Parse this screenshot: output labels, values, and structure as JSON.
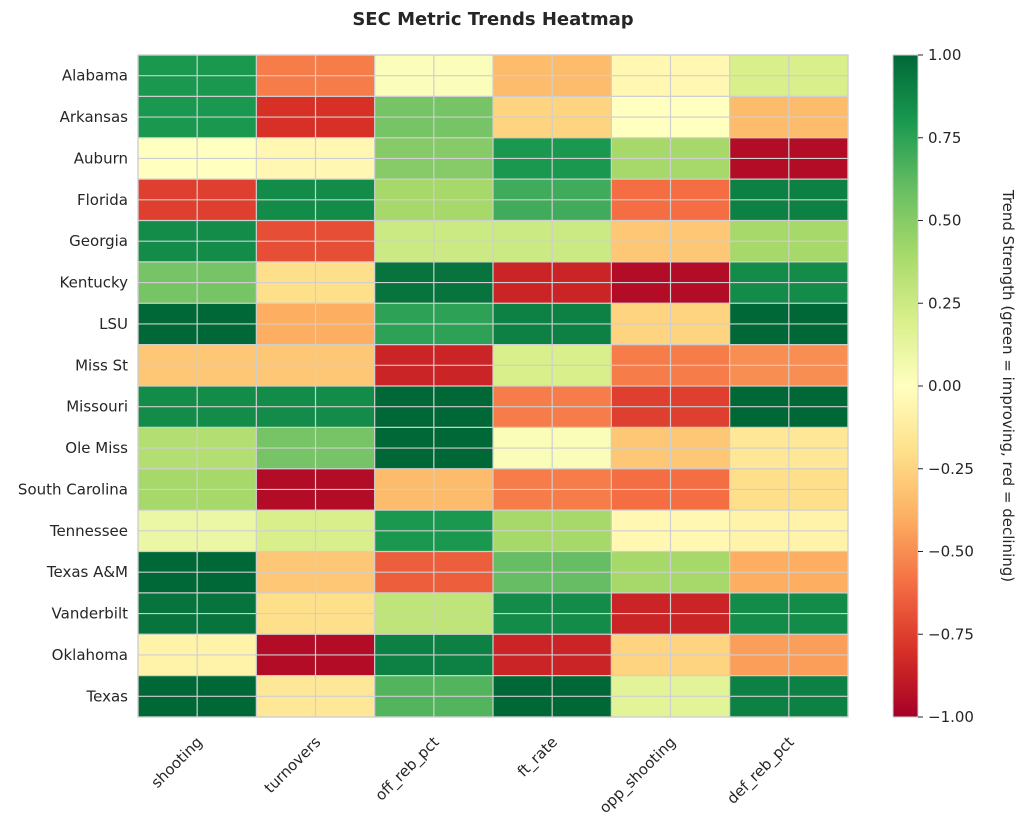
{
  "chart_data": {
    "type": "heatmap",
    "title": "SEC Metric Trends Heatmap",
    "rows": [
      "Alabama",
      "Arkansas",
      "Auburn",
      "Florida",
      "Georgia",
      "Kentucky",
      "LSU",
      "Miss St",
      "Missouri",
      "Ole Miss",
      "South Carolina",
      "Tennessee",
      "Texas A&M",
      "Vanderbilt",
      "Oklahoma",
      "Texas"
    ],
    "columns": [
      "shooting",
      "turnovers",
      "off_reb_pct",
      "ft_rate",
      "opp_shooting",
      "def_reb_pct"
    ],
    "values": [
      [
        0.8,
        -0.55,
        0.02,
        -0.35,
        -0.05,
        0.2
      ],
      [
        0.8,
        -0.8,
        0.55,
        -0.25,
        0.0,
        -0.35
      ],
      [
        0.0,
        -0.05,
        0.5,
        0.8,
        0.4,
        -0.95
      ],
      [
        -0.75,
        0.85,
        0.4,
        0.7,
        -0.6,
        0.9
      ],
      [
        0.85,
        -0.7,
        0.25,
        0.25,
        -0.3,
        0.4
      ],
      [
        0.55,
        -0.2,
        0.95,
        -0.85,
        -0.95,
        0.85
      ],
      [
        1.0,
        -0.4,
        0.75,
        0.9,
        -0.25,
        1.0
      ],
      [
        -0.3,
        -0.3,
        -0.85,
        0.2,
        -0.55,
        -0.5
      ],
      [
        0.85,
        0.85,
        1.0,
        -0.55,
        -0.75,
        1.0
      ],
      [
        0.35,
        0.55,
        1.0,
        0.03,
        -0.3,
        -0.15
      ],
      [
        0.4,
        -0.95,
        -0.35,
        -0.55,
        -0.6,
        -0.2
      ],
      [
        0.1,
        0.2,
        0.8,
        0.4,
        -0.05,
        -0.08
      ],
      [
        1.0,
        -0.3,
        -0.65,
        0.6,
        0.4,
        -0.4
      ],
      [
        0.95,
        -0.2,
        0.3,
        0.85,
        -0.85,
        0.85
      ],
      [
        -0.08,
        -0.95,
        0.9,
        -0.85,
        -0.25,
        -0.45
      ],
      [
        1.0,
        -0.15,
        0.65,
        1.0,
        0.15,
        0.9
      ]
    ],
    "vmin": -1.0,
    "vmax": 1.0,
    "colormap": "RdYlGn",
    "colorbar": {
      "label": "Trend Strength (green = improving, red = declining)",
      "ticks": [
        1.0,
        0.75,
        0.5,
        0.25,
        0.0,
        -0.25,
        -0.5,
        -0.75,
        -1.0
      ],
      "tick_labels": [
        "1.00",
        "0.75",
        "0.50",
        "0.25",
        "0.00",
        "−0.25",
        "−0.50",
        "−0.75",
        "−1.00"
      ]
    },
    "grid": true
  }
}
